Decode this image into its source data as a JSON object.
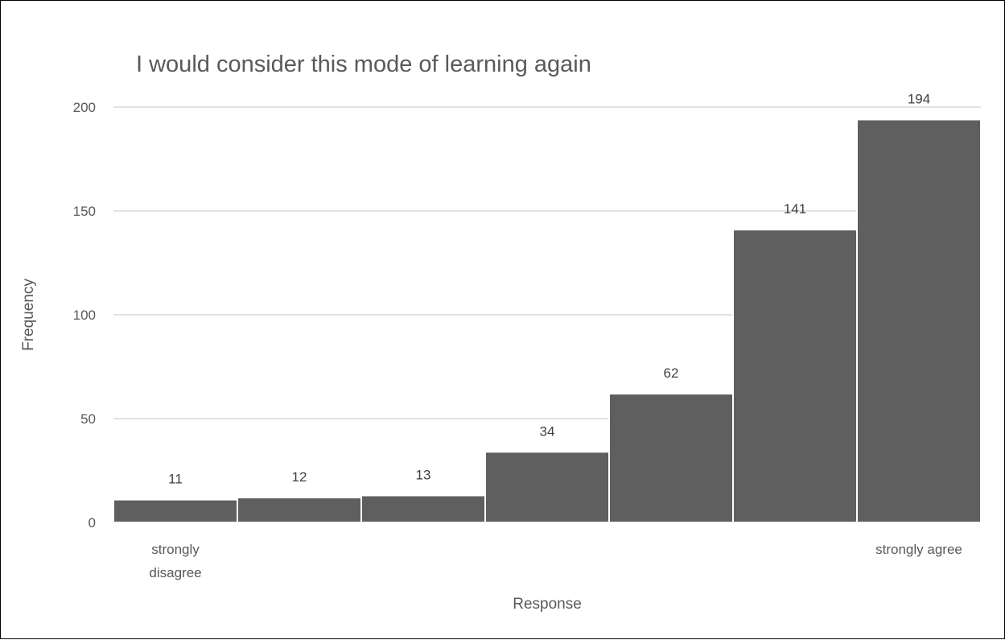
{
  "chart_data": {
    "type": "bar",
    "title": "I would consider this mode of learning again",
    "xlabel": "Response",
    "ylabel": "Frequency",
    "categories": [
      "strongly disagree",
      "",
      "",
      "",
      "",
      "",
      "strongly agree"
    ],
    "category_label_lines": [
      [
        "strongly",
        "disagree"
      ],
      [],
      [],
      [],
      [],
      [],
      [
        "strongly agree"
      ]
    ],
    "values": [
      11,
      12,
      13,
      34,
      62,
      141,
      194
    ],
    "ylim": [
      0,
      200
    ],
    "yticks": [
      0,
      50,
      100,
      150,
      200
    ],
    "grid": true,
    "legend": "none",
    "bar_color": "#5f5f5f"
  }
}
